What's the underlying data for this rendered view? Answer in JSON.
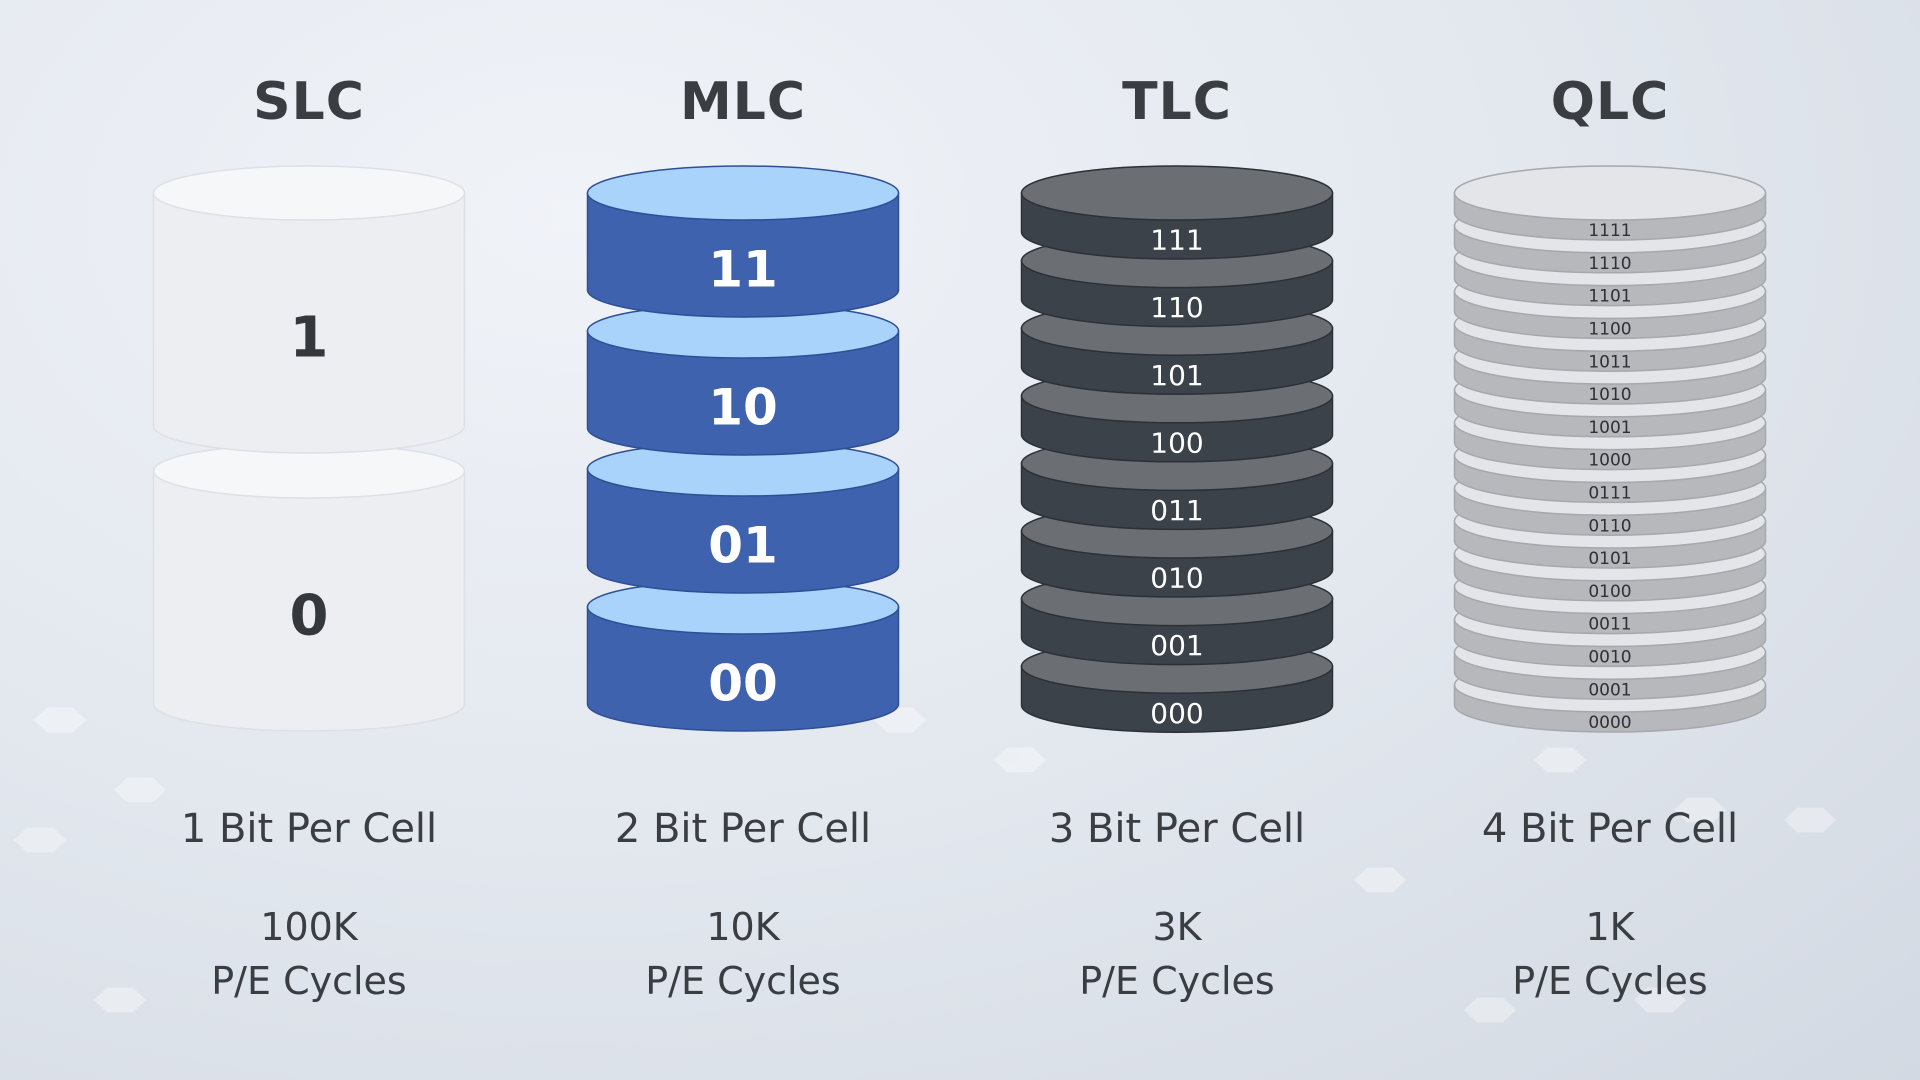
{
  "columns": [
    {
      "title": "SLC",
      "bits": [
        "1",
        "0"
      ],
      "bits_per_cell": "1 Bit Per Cell",
      "cycles": "100K",
      "cycles_label": "P/E Cycles",
      "colors": {
        "top": "#f6f7f9",
        "side": "#eceef1",
        "edge": "#dde0e5",
        "text": "#34373c"
      }
    },
    {
      "title": "MLC",
      "bits": [
        "11",
        "10",
        "01",
        "00"
      ],
      "bits_per_cell": "2 Bit Per Cell",
      "cycles": "10K",
      "cycles_label": "P/E Cycles",
      "colors": {
        "top": "#a9d3fa",
        "side": "#3e62ad",
        "edge": "#2f4f95",
        "text": "#ffffff"
      }
    },
    {
      "title": "TLC",
      "bits": [
        "111",
        "110",
        "101",
        "100",
        "011",
        "010",
        "001",
        "000"
      ],
      "bits_per_cell": "3 Bit Per Cell",
      "cycles": "3K",
      "cycles_label": "P/E Cycles",
      "colors": {
        "top": "#6b6e73",
        "side": "#3c4249",
        "edge": "#2c3137",
        "text": "#ffffff"
      }
    },
    {
      "title": "QLC",
      "bits": [
        "1111",
        "1110",
        "1101",
        "1100",
        "1011",
        "1010",
        "1001",
        "1000",
        "0111",
        "0110",
        "0101",
        "0100",
        "0011",
        "0010",
        "0001",
        "0000"
      ],
      "bits_per_cell": "4 Bit Per Cell",
      "cycles": "1K",
      "cycles_label": "P/E Cycles",
      "colors": {
        "top": "#e3e5e9",
        "side": "#b6b8bb",
        "edge": "#a5a8ac",
        "text": "#2e3135"
      }
    }
  ]
}
